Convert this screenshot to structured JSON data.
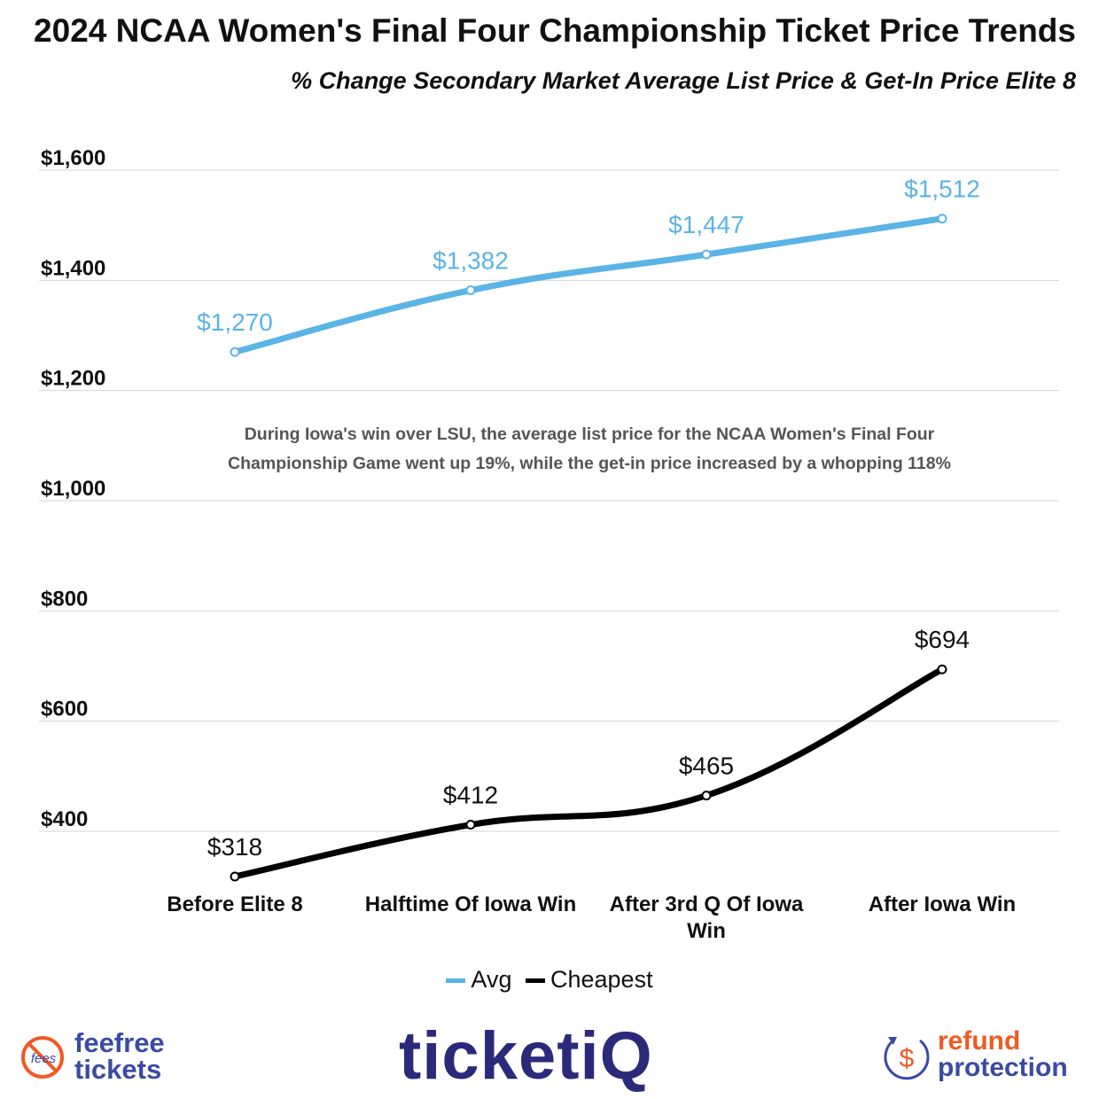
{
  "title": "2024 NCAA Women's Final Four Championship Ticket Price Trends",
  "subtitle": "% Change Secondary Market Average List Price & Get-In Price Elite 8",
  "annotation": {
    "line1": "During Iowa's win over LSU, the average list price for the NCAA Women's Final Four",
    "line2": "Championship Game went up 19%, while the get-in price increased by a whopping 118%"
  },
  "chart_data": {
    "type": "line",
    "categories": [
      "Before Elite 8",
      "Halftime Of Iowa Win",
      "After 3rd Q Of Iowa Win",
      "After Iowa Win"
    ],
    "series": [
      {
        "name": "Avg",
        "values": [
          1270,
          1382,
          1447,
          1512
        ],
        "labels": [
          "$1,270",
          "$1,382",
          "$1,447",
          "$1,512"
        ],
        "color": "#5ab4e5"
      },
      {
        "name": "Cheapest",
        "values": [
          318,
          412,
          465,
          694
        ],
        "labels": [
          "$318",
          "$412",
          "$465",
          "$694"
        ],
        "color": "#000000"
      }
    ],
    "yticks": [
      {
        "value": 400,
        "label": "$400"
      },
      {
        "value": 600,
        "label": "$600"
      },
      {
        "value": 800,
        "label": "$800"
      },
      {
        "value": 1000,
        "label": "$1,000"
      },
      {
        "value": 1200,
        "label": "$1,200"
      },
      {
        "value": 1400,
        "label": "$1,400"
      },
      {
        "value": 1600,
        "label": "$1,600"
      }
    ],
    "ylim": [
      318,
      1600
    ],
    "grid": true,
    "legend": "bottom-center",
    "xlabel": "",
    "ylabel": ""
  },
  "footer": {
    "fee_logo_line1": "feefree",
    "fee_logo_line2": "tickets",
    "fee_badge": "fees",
    "ticketiq_logo": "ticketiQ",
    "refund_line1": "refund",
    "refund_line2": "protection",
    "refund_symbol": "$"
  }
}
